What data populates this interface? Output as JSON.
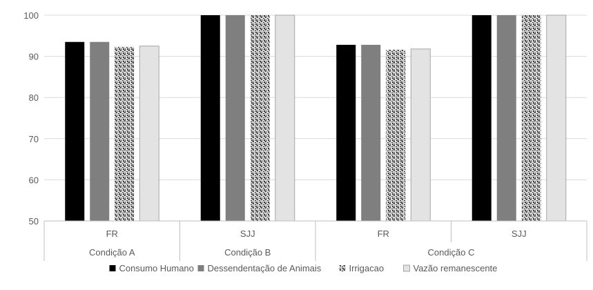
{
  "chart_data": {
    "type": "bar",
    "ylim": [
      50,
      100
    ],
    "yticks": [
      "50",
      "60",
      "70",
      "80",
      "90",
      "100"
    ],
    "categories": [
      "FR",
      "SJJ",
      "FR",
      "SJJ"
    ],
    "groups": [
      {
        "label": "Condição A",
        "span": [
          0,
          0
        ]
      },
      {
        "label": "Condição B",
        "span": [
          1,
          1
        ]
      },
      {
        "label": "Condição C",
        "span": [
          2,
          3
        ]
      }
    ],
    "series": [
      {
        "name": "Consumo Humano",
        "color": "#000000",
        "pattern": "solid",
        "values": [
          93.5,
          100,
          92.8,
          100
        ]
      },
      {
        "name": "Dessendentação de Animais",
        "color": "#7f7f7f",
        "pattern": "solid",
        "values": [
          93.5,
          100,
          92.8,
          100
        ]
      },
      {
        "name": "Irrigacao",
        "color": "#8a8a8a",
        "pattern": "speckle",
        "values": [
          92.3,
          100,
          91.6,
          100
        ]
      },
      {
        "name": "Vazão remanescente",
        "color": "#e3e3e3",
        "pattern": "solid",
        "values": [
          92.5,
          100,
          91.8,
          100
        ]
      }
    ],
    "grid": true,
    "legend_position": "bottom"
  }
}
